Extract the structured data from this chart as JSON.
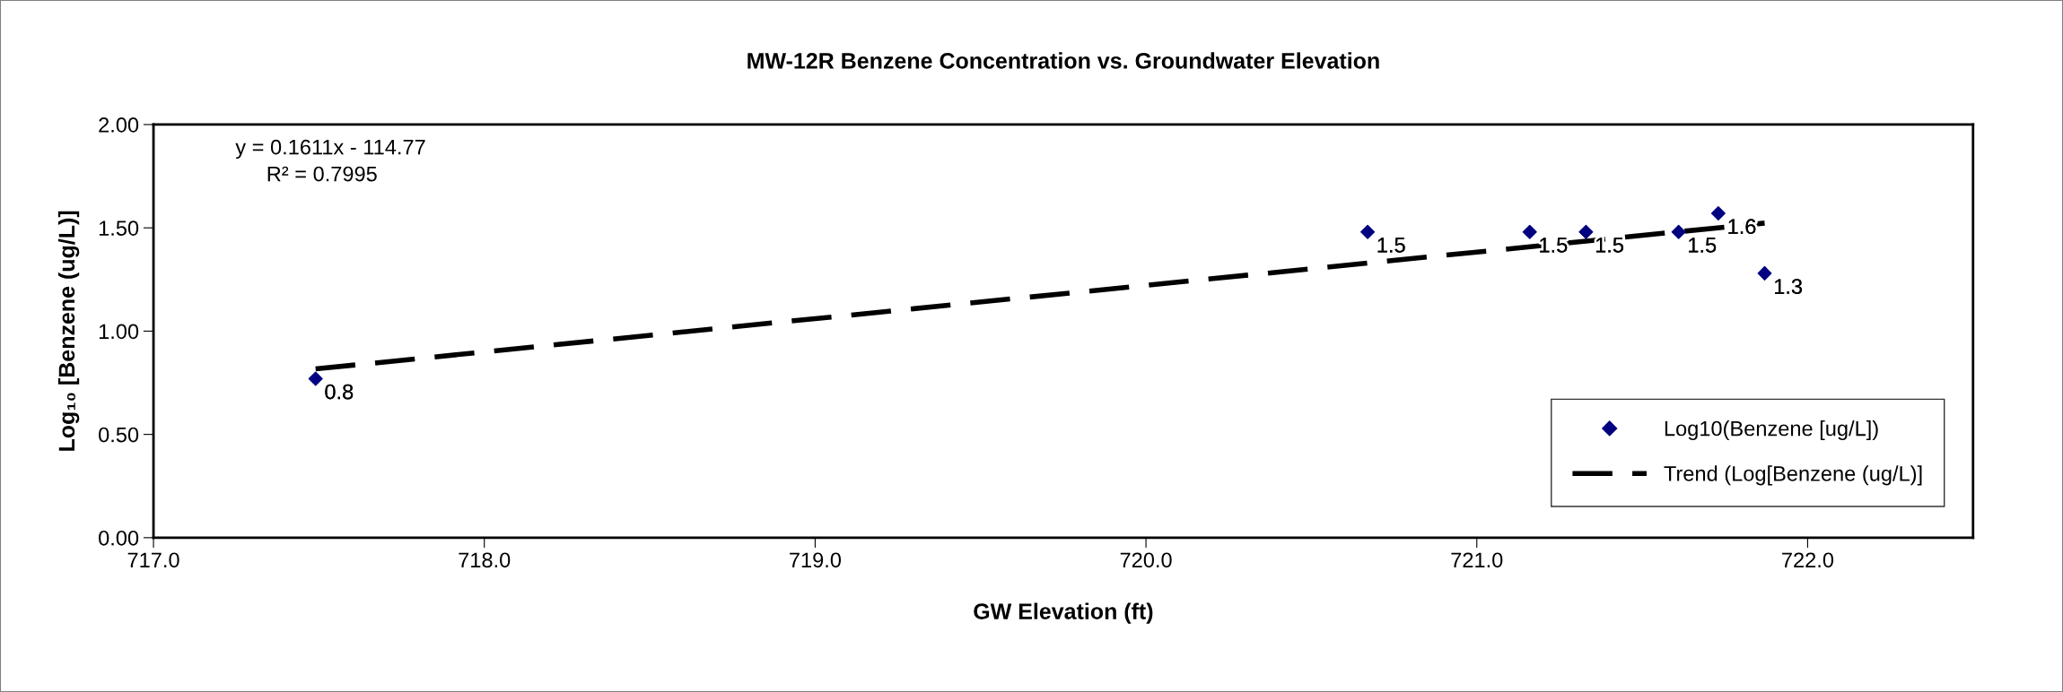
{
  "chart_data": {
    "type": "scatter",
    "title": "MW-12R Benzene Concentration vs. Groundwater Elevation",
    "xlabel": "GW Elevation (ft)",
    "ylabel": "Log₁₀ [Benzene (ug/L)]",
    "x": [
      717.49,
      720.67,
      721.16,
      721.33,
      721.61,
      721.73,
      721.87
    ],
    "series": [
      {
        "name": "Log10(Benzene [ug/L])",
        "type": "scatter",
        "color": "#000080",
        "marker": "diamond",
        "values": [
          0.77,
          1.48,
          1.48,
          1.48,
          1.48,
          1.57,
          1.28
        ],
        "value_labels": [
          "0.8",
          "1.5",
          "1.5",
          "1.5",
          "1.5",
          "1.6",
          "1.3"
        ]
      },
      {
        "name": "Trend (Log[Benzene (ug/L)]",
        "type": "line",
        "color": "#000000",
        "line_style": "dashed",
        "marker": "none",
        "x": [
          717.49,
          721.87
        ],
        "values": [
          0.817,
          1.523
        ]
      }
    ],
    "annotations": [
      "y = 0.1611x - 114.77",
      "R² = 0.7995"
    ],
    "xlim": [
      717.0,
      722.5
    ],
    "xticks": [
      {
        "value": 717,
        "label": "717.0"
      },
      {
        "value": 718,
        "label": "718.0"
      },
      {
        "value": 719,
        "label": "719.0"
      },
      {
        "value": 720,
        "label": "720.0"
      },
      {
        "value": 721,
        "label": "721.0"
      },
      {
        "value": 722,
        "label": "722.0"
      }
    ],
    "ylim": [
      0,
      2
    ],
    "yticks": [
      {
        "value": 0,
        "label": "0.00"
      },
      {
        "value": 0.5,
        "label": "0.50"
      },
      {
        "value": 1,
        "label": "1.00"
      },
      {
        "value": 1.5,
        "label": "1.50"
      },
      {
        "value": 2,
        "label": "2.00"
      }
    ],
    "grid": false,
    "legend": "bottom right"
  }
}
